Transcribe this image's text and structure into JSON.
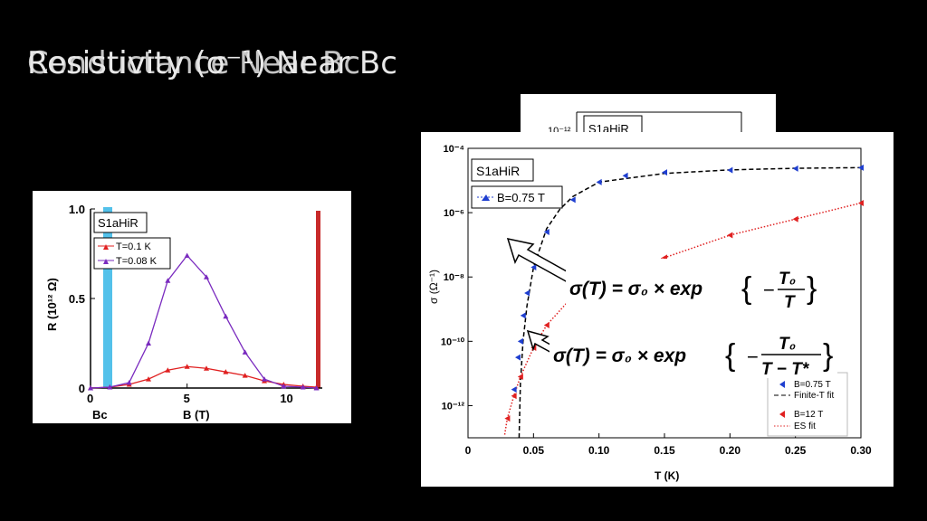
{
  "slide": {
    "title_a": "Resistivity (σ⁻¹) Near Bc",
    "title_b": "Conductance Near Bc"
  },
  "colors": {
    "red": "#e02020",
    "purple": "#7a2bbf",
    "blue": "#1f3fd0",
    "bc_band": "#35b6e6",
    "bar": "#c82a2a"
  },
  "left_chart": {
    "chart_data": {
      "type": "line",
      "title": "S1aHiR",
      "xlabel": "B (T)",
      "ylabel": "R (10¹² Ω)",
      "xlim": [
        0,
        12
      ],
      "ylim": [
        0,
        1.0
      ],
      "x_ticks": [
        "0",
        "5",
        "10"
      ],
      "y_ticks": [
        "0",
        "0.5",
        "1.0"
      ],
      "bc_label": "Bc",
      "legend_placement": "top-left",
      "series": [
        {
          "name": "T=0.1 K",
          "color": "#e02020",
          "marker": "triangle",
          "x": [
            0,
            1,
            2,
            3,
            4,
            5,
            6,
            7,
            8,
            9,
            10,
            11,
            11.7
          ],
          "y": [
            0,
            0.005,
            0.02,
            0.05,
            0.1,
            0.12,
            0.11,
            0.09,
            0.07,
            0.04,
            0.02,
            0.01,
            0.005
          ]
        },
        {
          "name": "T=0.08 K",
          "color": "#7a2bbf",
          "marker": "triangle",
          "x": [
            0,
            1,
            2,
            3,
            4,
            5,
            6,
            7,
            8,
            9,
            10,
            11,
            11.7
          ],
          "y": [
            0,
            0.005,
            0.03,
            0.25,
            0.6,
            0.74,
            0.62,
            0.4,
            0.2,
            0.05,
            0.01,
            0.005,
            0
          ]
        }
      ]
    }
  },
  "right_chart": {
    "back_label": "S1aHiR",
    "back_tick": "10⁻¹²",
    "chart_data": {
      "type": "scatter",
      "title": "S1aHiR",
      "xlabel": "T (K)",
      "ylabel": "σ (Ω⁻¹)",
      "xlim": [
        0,
        0.3
      ],
      "ylim_log10": [
        -13,
        -4
      ],
      "x_ticks": [
        "0",
        "0.05",
        "0.10",
        "0.15",
        "0.20",
        "0.25",
        "0.30"
      ],
      "y_ticks": [
        {
          "label": "10⁻⁴",
          "exp": -4
        },
        {
          "label": "10⁻⁶",
          "exp": -6
        },
        {
          "label": "10⁻⁸",
          "exp": -8
        },
        {
          "label": "10⁻¹⁰",
          "exp": -10
        },
        {
          "label": "10⁻¹²",
          "exp": -12
        }
      ],
      "top_legend": "B=0.75 T",
      "legend": [
        {
          "label": "B=0.75 T",
          "kind": "marker",
          "color": "#1f3fd0"
        },
        {
          "label": "Finite-T fit",
          "kind": "dashed",
          "color": "#000000"
        },
        {
          "label": "B=12 T",
          "kind": "marker",
          "color": "#e02020"
        },
        {
          "label": "ES fit",
          "kind": "dotted",
          "color": "#e02020"
        }
      ],
      "series": [
        {
          "name": "B=0.75 T",
          "color": "#1f3fd0",
          "x": [
            0.035,
            0.038,
            0.04,
            0.042,
            0.045,
            0.05,
            0.06,
            0.08,
            0.1,
            0.12,
            0.15,
            0.2,
            0.25,
            0.3
          ],
          "log10_y": [
            -11.5,
            -10.5,
            -10.0,
            -9.2,
            -8.5,
            -7.7,
            -6.6,
            -5.6,
            -5.05,
            -4.85,
            -4.75,
            -4.68,
            -4.63,
            -4.6
          ]
        },
        {
          "name": "B=12 T",
          "color": "#e02020",
          "x": [
            0.03,
            0.035,
            0.04,
            0.05,
            0.06,
            0.08,
            0.1,
            0.12,
            0.15,
            0.2,
            0.25,
            0.3
          ],
          "log10_y": [
            -12.4,
            -11.7,
            -11.1,
            -10.2,
            -9.5,
            -8.6,
            -8.1,
            -7.8,
            -7.4,
            -6.7,
            -6.2,
            -5.7
          ]
        }
      ],
      "fits": [
        {
          "name": "Finite-T fit",
          "style": "dashed",
          "color": "#000000",
          "x": [
            0.039,
            0.04,
            0.042,
            0.045,
            0.05,
            0.06,
            0.07,
            0.08,
            0.1,
            0.15,
            0.2,
            0.25,
            0.3
          ],
          "log10_y": [
            -13,
            -11.3,
            -10.0,
            -8.9,
            -7.7,
            -6.5,
            -5.9,
            -5.5,
            -5.05,
            -4.78,
            -4.67,
            -4.62,
            -4.6
          ]
        },
        {
          "name": "ES fit",
          "style": "dotted",
          "color": "#e02020",
          "x": [
            0.028,
            0.03,
            0.035,
            0.04,
            0.05,
            0.06,
            0.08,
            0.1,
            0.12,
            0.15,
            0.2,
            0.25,
            0.3
          ],
          "log10_y": [
            -12.9,
            -12.4,
            -11.7,
            -11.1,
            -10.2,
            -9.5,
            -8.6,
            -8.1,
            -7.8,
            -7.4,
            -6.7,
            -6.2,
            -5.7
          ]
        }
      ]
    }
  },
  "formulas": {
    "f1": {
      "lhs": "σ(T) = σ₀ × exp",
      "num": "T₀",
      "den": "T"
    },
    "f2": {
      "lhs": "σ(T) = σ₀ × exp",
      "num": "T₀",
      "den": "T − T*"
    }
  }
}
